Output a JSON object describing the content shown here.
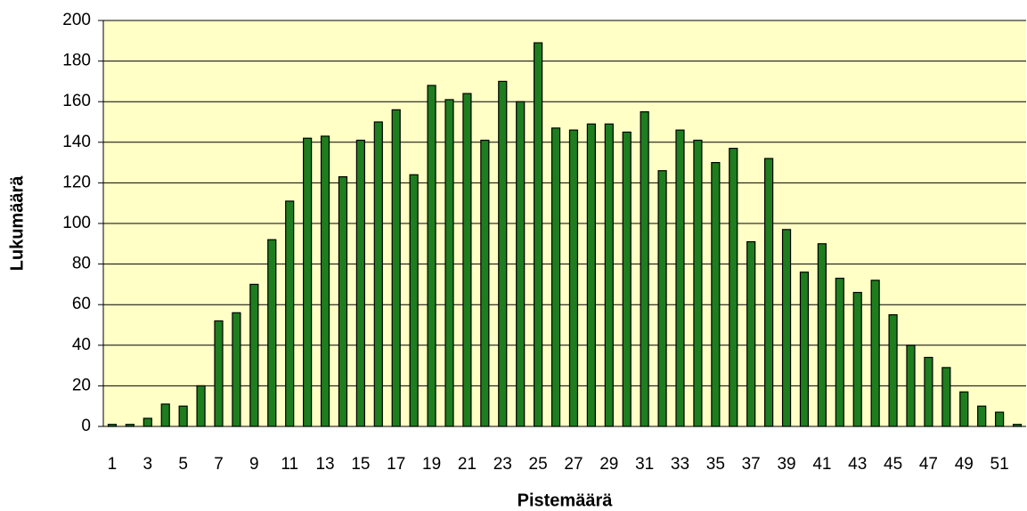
{
  "chart_data": {
    "type": "bar",
    "x_label": "Pistemäärä",
    "y_label": "Lukumäärä",
    "categories": [
      "1",
      null,
      "3",
      null,
      "5",
      null,
      "7",
      null,
      "9",
      null,
      "11",
      null,
      "13",
      null,
      "15",
      null,
      "17",
      null,
      "19",
      null,
      "21",
      null,
      "23",
      null,
      "25",
      null,
      "27",
      null,
      "29",
      null,
      "31",
      null,
      "33",
      null,
      "35",
      null,
      "37",
      null,
      "39",
      null,
      "41",
      null,
      "43",
      null,
      "45",
      null,
      "47",
      null,
      "49",
      null,
      "51",
      null
    ],
    "values": [
      1,
      1,
      4,
      11,
      10,
      20,
      52,
      56,
      70,
      92,
      111,
      142,
      143,
      123,
      141,
      150,
      156,
      124,
      168,
      161,
      164,
      141,
      170,
      160,
      189,
      147,
      146,
      149,
      149,
      145,
      155,
      126,
      146,
      141,
      130,
      137,
      91,
      132,
      97,
      76,
      90,
      73,
      66,
      72,
      55,
      40,
      34,
      29,
      17,
      10,
      7,
      1
    ],
    "color": "#1e7d1e",
    "background": "#ffffc6",
    "ylim": [
      0,
      200
    ],
    "yticks": [
      0,
      20,
      40,
      60,
      80,
      100,
      120,
      140,
      160,
      180,
      200
    ],
    "grid": true
  }
}
